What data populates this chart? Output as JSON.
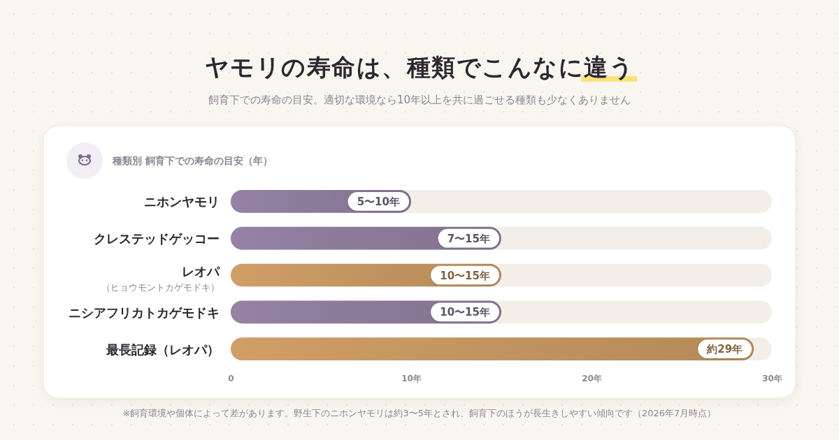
{
  "chart_data": {
    "type": "bar",
    "orientation": "horizontal",
    "title": "ヤモリの寿命は、種類でこんなに違う",
    "subtitle": "飼育下での寿命の目安。適切な環境なら10年以上を共に過ごせる種類も少なくありません",
    "categories": [
      "ニホンヤモリ",
      "クレステッドゲッコー",
      "レオパ$_{（ヒョウモントカゲモドキ）}$",
      "ニシアフリカトカゲモドキ",
      "最長記録（レオパ）"
    ],
    "values": [
      10,
      15,
      15,
      15,
      29
    ],
    "value_labels": [
      "5〜10年",
      "7〜15年",
      "10〜15年",
      "10〜15年",
      "約29年"
    ],
    "colors": [
      "#8a7899",
      "#8a7899",
      "#c0925f",
      "#8a7899",
      "#c0925f"
    ],
    "xlim": [
      0,
      30
    ],
    "xticks": [
      0,
      {
        "value": 10,
        "label": "10年"
      },
      {
        "value": 20,
        "label": "20年"
      },
      {
        "value": 30,
        "label": "30年"
      }
    ],
    "annotations": [
      "種類別 飼育下での寿命の目安（年）",
      "※飼育環境や個体によって差があります。野生下のニホンヤモリは約3〜5年とされ、飼育下のほうが長生きしやすい傾向です（2026年7月時点）"
    ]
  }
}
